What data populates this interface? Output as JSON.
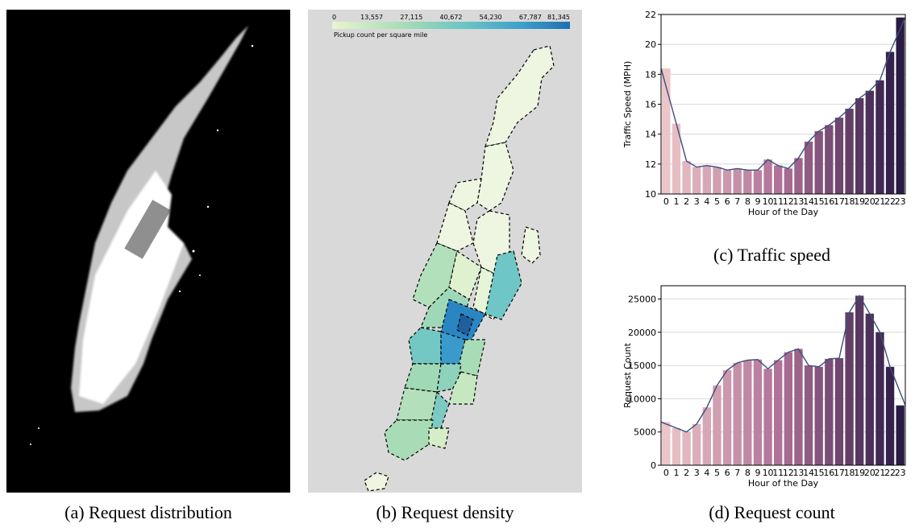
{
  "captions": {
    "a": "(a) Request distribution",
    "b": "(b) Request density",
    "c": "(c) Traffic speed",
    "d": "(d) Request count"
  },
  "density_legend": {
    "ticks": [
      "0",
      "13,557",
      "27,115",
      "40,672",
      "54,230",
      "67,787",
      "81,345"
    ],
    "label": "Pickup count per square mile",
    "colors": [
      "#e8f5d0",
      "#a8dcb6",
      "#6cc5c4",
      "#3d9fcb",
      "#1f6fb0"
    ]
  },
  "chart_data": [
    {
      "type": "bar",
      "id": "traffic-speed",
      "categories": [
        "0",
        "1",
        "2",
        "3",
        "4",
        "5",
        "6",
        "7",
        "8",
        "9",
        "10",
        "11",
        "12",
        "13",
        "14",
        "15",
        "16",
        "17",
        "18",
        "19",
        "20",
        "21",
        "22",
        "23"
      ],
      "values": [
        18.4,
        14.7,
        12.2,
        11.8,
        11.9,
        11.8,
        11.6,
        11.7,
        11.6,
        11.6,
        12.3,
        11.9,
        11.7,
        12.4,
        13.5,
        14.2,
        14.6,
        15.1,
        15.7,
        16.4,
        16.9,
        17.6,
        19.5,
        21.8
      ],
      "xlabel": "Hour of the Day",
      "ylabel": "Traffic Speed (MPH)",
      "ylim": [
        10,
        22
      ],
      "yticks": [
        10,
        12,
        14,
        16,
        18,
        20,
        22
      ],
      "overlay_line": true,
      "grid": true
    },
    {
      "type": "bar",
      "id": "request-count",
      "categories": [
        "0",
        "1",
        "2",
        "3",
        "4",
        "5",
        "6",
        "7",
        "8",
        "9",
        "10",
        "11",
        "12",
        "13",
        "14",
        "15",
        "16",
        "17",
        "18",
        "19",
        "20",
        "21",
        "22",
        "23"
      ],
      "values": [
        6500,
        5600,
        5000,
        6200,
        8700,
        12000,
        14300,
        15400,
        15800,
        15900,
        14500,
        15800,
        17000,
        17500,
        15000,
        14800,
        16000,
        16100,
        23000,
        25500,
        22800,
        20000,
        14800,
        9000
      ],
      "xlabel": "Hour of the Day",
      "ylabel": "Request Count",
      "ylim": [
        0,
        27000
      ],
      "yticks": [
        0,
        5000,
        10000,
        15000,
        20000,
        25000
      ],
      "overlay_line": true,
      "grid": true
    }
  ]
}
